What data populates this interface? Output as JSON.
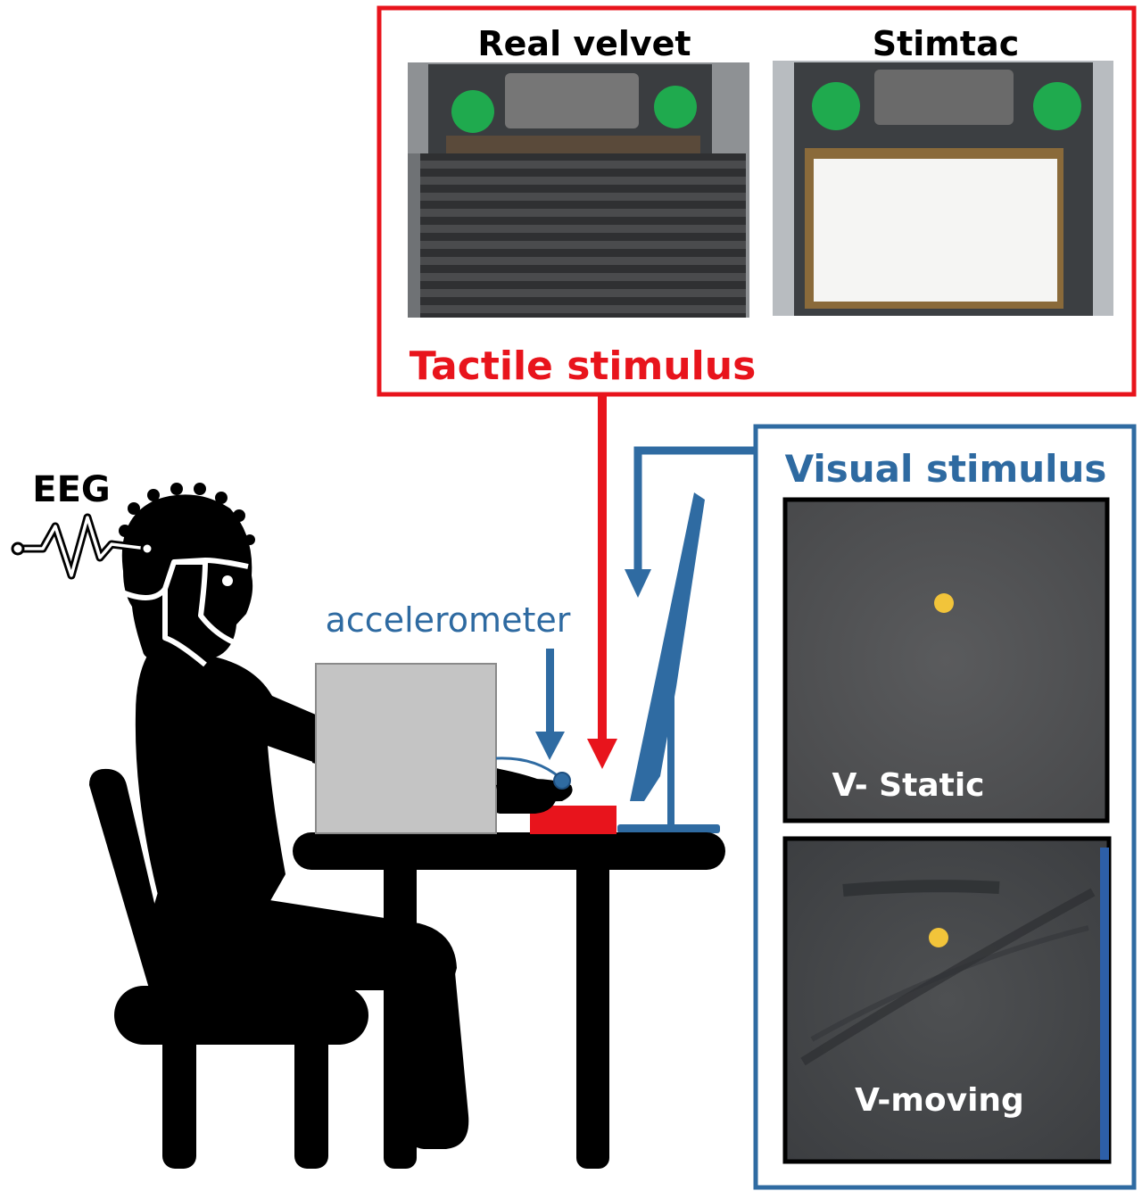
{
  "labels": {
    "real_velvet": "Real velvet",
    "stimtac": "Stimtac",
    "tactile_stimulus": "Tactile stimulus",
    "visual_stimulus": "Visual stimulus",
    "eeg": "EEG",
    "accelerometer": "accelerometer",
    "v_static": "V- Static",
    "v_moving": "V-moving"
  },
  "colors": {
    "red": "#e8141c",
    "blue": "#2f6ba2",
    "blue_text": "#2e6aa1",
    "black": "#000000",
    "laptop_gray": "#c4c4c4",
    "green": "#1faa4e",
    "screen_gray": "#4e4f51",
    "dot_yellow": "#f2c43a"
  },
  "icons": {
    "person": "seated-person-icon",
    "chair": "chair-icon",
    "table": "table-icon",
    "laptop": "laptop-icon",
    "monitor": "monitor-icon",
    "eeg_cap": "eeg-cap-icon"
  }
}
